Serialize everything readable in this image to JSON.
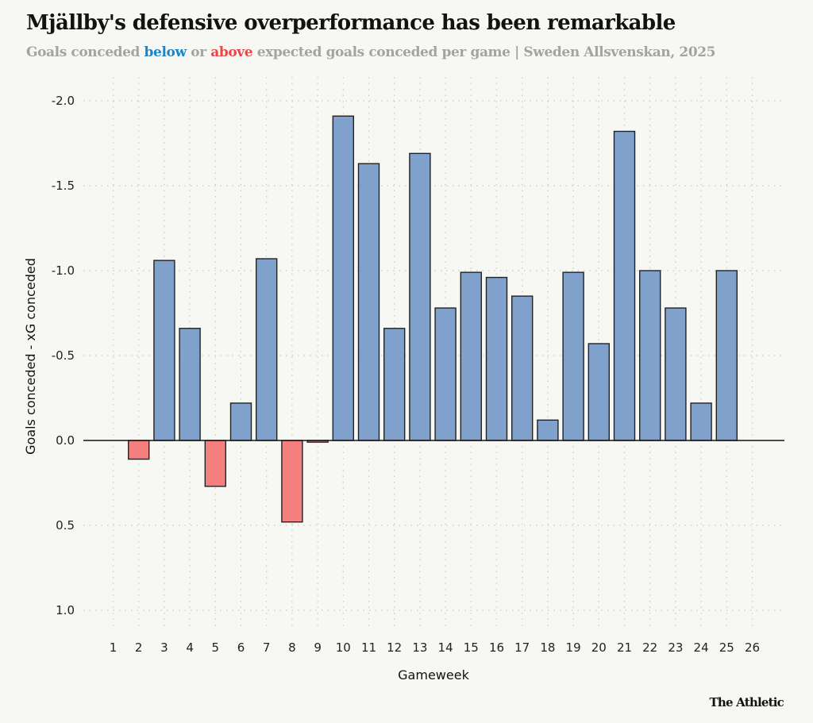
{
  "header": {
    "title": "Mjällby's defensive overperformance has been remarkable",
    "subtitle_pre": "Goals conceded ",
    "subtitle_below": "below",
    "subtitle_mid": " or ",
    "subtitle_above": "above",
    "subtitle_post": " expected goals conceded per game | Sweden Allsvenskan, 2025"
  },
  "footer": {
    "brand": "The Athletic"
  },
  "colors": {
    "below": "#7fa1cb",
    "above": "#f47f7d",
    "below_text": "#1a86c8",
    "above_text": "#e8474a",
    "bar_stroke": "#222222"
  },
  "chart_data": {
    "type": "bar",
    "title": "Mjällby's defensive overperformance has been remarkable",
    "subtitle": "Goals conceded below or above expected goals conceded per game | Sweden Allsvenskan, 2025",
    "xlabel": "Gameweek",
    "ylabel": "Goals conceded - xG conceded",
    "categories": [
      "1",
      "2",
      "3",
      "4",
      "5",
      "6",
      "7",
      "8",
      "9",
      "10",
      "11",
      "12",
      "13",
      "14",
      "15",
      "16",
      "17",
      "18",
      "19",
      "20",
      "21",
      "22",
      "23",
      "24",
      "25",
      "26"
    ],
    "values": [
      0,
      0.11,
      -1.06,
      -0.66,
      0.27,
      -0.22,
      -1.07,
      0.48,
      0.01,
      -1.91,
      -1.63,
      -0.66,
      -1.69,
      -0.78,
      -0.99,
      -0.96,
      -0.85,
      -0.12,
      -0.99,
      -0.57,
      -1.82,
      -1.0,
      -0.78,
      -0.22,
      -1.0,
      0
    ],
    "ylim": [
      -2.0,
      1.0
    ],
    "y_inverted": true,
    "yticks": [
      -2.0,
      -1.5,
      -1.0,
      -0.5,
      0.0,
      0.5,
      1.0
    ],
    "ytick_labels": [
      "-2.0",
      "-1.5",
      "-1.0",
      "-0.5",
      "0.0",
      "0.5",
      "1.0"
    ],
    "grid": true,
    "legend": "none (encoded in subtitle colors)"
  }
}
